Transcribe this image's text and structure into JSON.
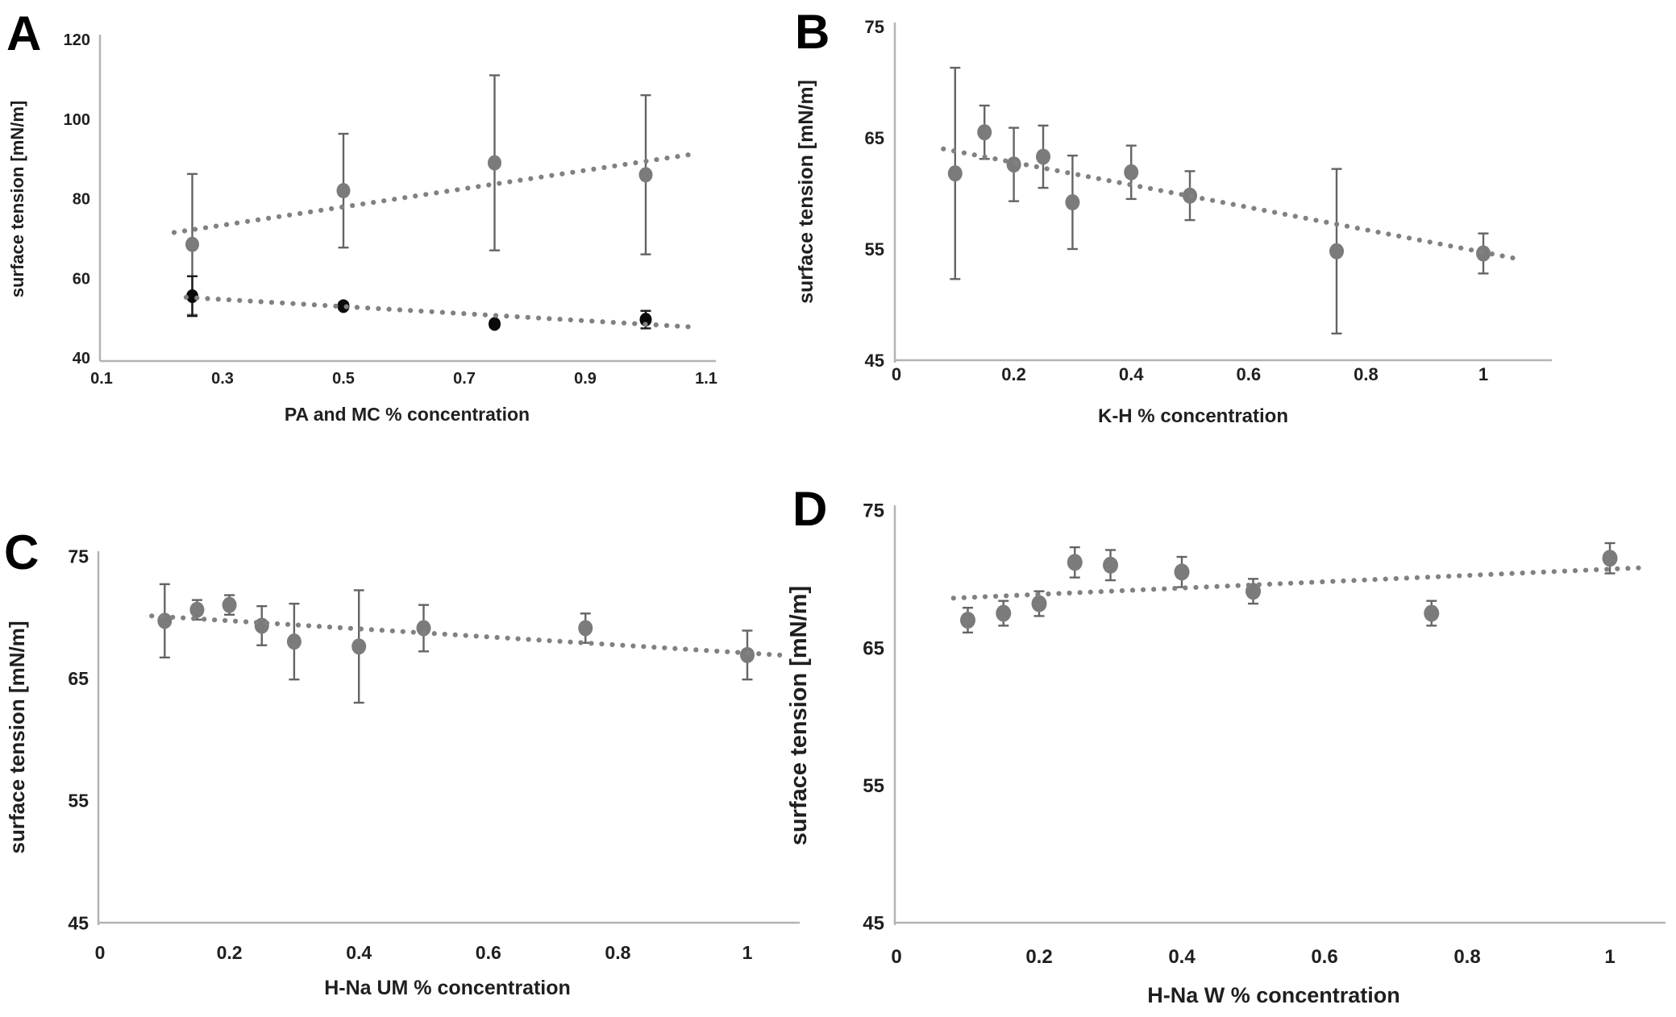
{
  "figure": {
    "background": "#ffffff"
  },
  "colors": {
    "marker_gray": "#7b7b7b",
    "marker_black": "#0a0a0a",
    "error_bar_gray": "#646464",
    "error_bar_black": "#1a1a1a",
    "trend_dot": "#818181",
    "axis_line": "#b3b3b3",
    "text": "#1f1f1f"
  },
  "chart_data": [
    {
      "id": "A",
      "panel_label": "A",
      "type": "scatter",
      "xlabel": "PA and MC % concentration",
      "ylabel": "surface tension [mN/m]",
      "xlim": [
        0.1,
        1.1
      ],
      "ylim": [
        40,
        120
      ],
      "xticks": [
        "0.1",
        "0.3",
        "0.5",
        "0.7",
        "0.9",
        "1.1"
      ],
      "xtick_values": [
        0.1,
        0.3,
        0.5,
        0.7,
        0.9,
        1.1
      ],
      "yticks": [
        "40",
        "60",
        "80",
        "100",
        "120"
      ],
      "ytick_values": [
        40,
        60,
        80,
        100,
        120
      ],
      "grid": false,
      "legend": "none",
      "series": [
        {
          "key": "gray-series",
          "marker_color": "gray",
          "x": [
            0.25,
            0.5,
            0.75,
            1.0
          ],
          "y": [
            68.5,
            82.0,
            89.0,
            86.0
          ],
          "yerr": [
            17.7,
            14.3,
            22.0,
            20.0
          ],
          "trendline": {
            "x": [
              0.22,
              1.07
            ],
            "y": [
              71.5,
              91.0
            ]
          }
        },
        {
          "key": "black-series",
          "marker_color": "black",
          "x": [
            0.25,
            0.5,
            0.75,
            1.0
          ],
          "y": [
            55.5,
            53.0,
            48.5,
            49.6
          ],
          "yerr": [
            5.0,
            0.8,
            0.8,
            2.2
          ],
          "trendline": {
            "x": [
              0.24,
              1.07
            ],
            "y": [
              55.2,
              47.8
            ]
          }
        }
      ]
    },
    {
      "id": "B",
      "panel_label": "B",
      "type": "scatter",
      "xlabel": "K-H % concentration",
      "ylabel": "surface tension [mN/m]",
      "xlim": [
        0,
        1.1
      ],
      "ylim": [
        45,
        75
      ],
      "xticks": [
        "0",
        "0.2",
        "0.4",
        "0.6",
        "0.8",
        "1"
      ],
      "xtick_values": [
        0,
        0.2,
        0.4,
        0.6,
        0.8,
        1
      ],
      "yticks": [
        "45",
        "55",
        "65",
        "75"
      ],
      "ytick_values": [
        45,
        55,
        65,
        75
      ],
      "grid": false,
      "legend": "none",
      "series": [
        {
          "key": "gray-series",
          "marker_color": "gray",
          "x": [
            0.1,
            0.15,
            0.2,
            0.25,
            0.3,
            0.4,
            0.5,
            0.75,
            1.0
          ],
          "y": [
            61.8,
            65.5,
            62.6,
            63.3,
            59.2,
            61.9,
            59.8,
            54.8,
            54.6
          ],
          "yerr": [
            9.5,
            2.4,
            3.3,
            2.8,
            4.2,
            2.4,
            2.2,
            7.4,
            1.8
          ],
          "trendline": {
            "x": [
              0.08,
              1.05
            ],
            "y": [
              64.0,
              54.2
            ]
          }
        }
      ]
    },
    {
      "id": "C",
      "panel_label": "C",
      "type": "scatter",
      "xlabel": "H-Na UM % concentration",
      "ylabel": "surface tension [mN/m]",
      "xlim": [
        0,
        1.1
      ],
      "ylim": [
        45,
        75
      ],
      "xticks": [
        "0",
        "0.2",
        "0.4",
        "0.6",
        "0.8",
        "1"
      ],
      "xtick_values": [
        0,
        0.2,
        0.4,
        0.6,
        0.8,
        1
      ],
      "yticks": [
        "45",
        "55",
        "65",
        "75"
      ],
      "ytick_values": [
        45,
        55,
        65,
        75
      ],
      "grid": false,
      "legend": "none",
      "series": [
        {
          "key": "gray-series",
          "marker_color": "gray",
          "x": [
            0.1,
            0.15,
            0.2,
            0.25,
            0.3,
            0.4,
            0.5,
            0.75,
            1.0
          ],
          "y": [
            69.7,
            70.6,
            71.0,
            69.3,
            68.0,
            67.6,
            69.1,
            69.1,
            66.9
          ],
          "yerr": [
            3.0,
            0.8,
            0.8,
            1.6,
            3.1,
            4.6,
            1.9,
            1.2,
            2.0
          ],
          "trendline": {
            "x": [
              0.08,
              1.05
            ],
            "y": [
              70.1,
              66.9
            ]
          }
        }
      ]
    },
    {
      "id": "D",
      "panel_label": "D",
      "type": "scatter",
      "xlabel": "H-Na W % concentration",
      "ylabel": "surface tension [mN/m]",
      "xlim": [
        0,
        1.1
      ],
      "ylim": [
        45,
        75
      ],
      "xticks": [
        "0",
        "0.2",
        "0.4",
        "0.6",
        "0.8",
        "1"
      ],
      "xtick_values": [
        0,
        0.2,
        0.4,
        0.6,
        0.8,
        1
      ],
      "yticks": [
        "45",
        "55",
        "65",
        "75"
      ],
      "ytick_values": [
        45,
        55,
        65,
        75
      ],
      "grid": false,
      "legend": "none",
      "series": [
        {
          "key": "gray-series",
          "marker_color": "gray",
          "x": [
            0.1,
            0.15,
            0.2,
            0.25,
            0.3,
            0.4,
            0.5,
            0.75,
            1.0
          ],
          "y": [
            67.0,
            67.5,
            68.2,
            71.2,
            71.0,
            70.5,
            69.1,
            67.5,
            71.5
          ],
          "yerr": [
            0.9,
            0.9,
            0.9,
            1.1,
            1.1,
            1.1,
            0.9,
            0.9,
            1.1
          ],
          "trendline": {
            "x": [
              0.08,
              1.04
            ],
            "y": [
              68.6,
              70.8
            ]
          }
        }
      ]
    }
  ]
}
